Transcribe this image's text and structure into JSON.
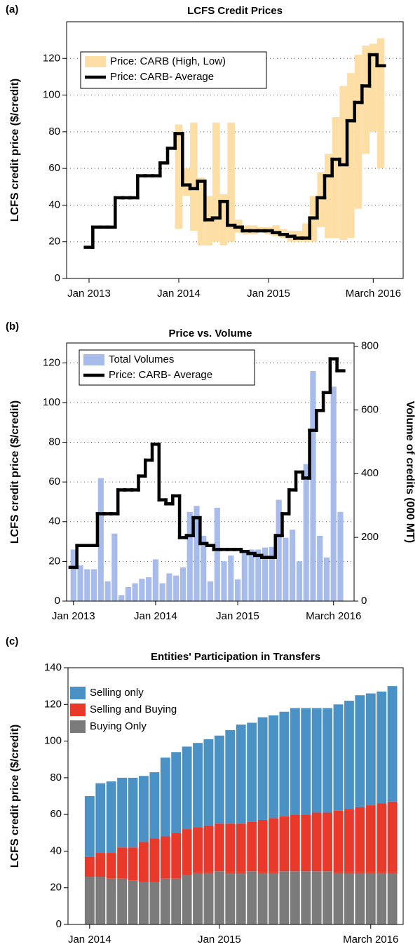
{
  "chart_data": [
    {
      "type": "step",
      "label": "(a)",
      "title": "LCFS Credit Prices",
      "ylabel": "LCFS credit price ($/credit)",
      "x": [
        "2013-01",
        "2013-02",
        "2013-03",
        "2013-04",
        "2013-05",
        "2013-06",
        "2013-07",
        "2013-08",
        "2013-09",
        "2013-10",
        "2013-11",
        "2013-12",
        "2014-01",
        "2014-02",
        "2014-03",
        "2014-04",
        "2014-05",
        "2014-06",
        "2014-07",
        "2014-08",
        "2014-09",
        "2014-10",
        "2014-11",
        "2014-12",
        "2015-01",
        "2015-02",
        "2015-03",
        "2015-04",
        "2015-05",
        "2015-06",
        "2015-07",
        "2015-08",
        "2015-09",
        "2015-10",
        "2015-11",
        "2015-12",
        "2016-01",
        "2016-02",
        "2016-03",
        "2016-04"
      ],
      "xlim": [
        "2012-10",
        "2016-07"
      ],
      "xticks": [
        {
          "value": "2013-01",
          "label": "Jan 2013"
        },
        {
          "value": "2014-01",
          "label": "Jan 2014"
        },
        {
          "value": "2015-01",
          "label": "Jan 2015"
        },
        {
          "value": "2016-03",
          "label": "March 2016"
        }
      ],
      "ylim": [
        0,
        140
      ],
      "yticks": [
        0,
        20,
        40,
        60,
        80,
        100,
        120
      ],
      "grid": true,
      "legend": "upper left",
      "series": [
        {
          "name": "Price: CARB (High, Low)",
          "color": "#fddfa6",
          "low": [
            null,
            null,
            null,
            null,
            null,
            null,
            null,
            null,
            null,
            null,
            null,
            null,
            27,
            45,
            26,
            18,
            18,
            20,
            18,
            20,
            25,
            24,
            24,
            25,
            24,
            23,
            22,
            20,
            20,
            20,
            20,
            28,
            22,
            22,
            21,
            22,
            38,
            68,
            80,
            60
          ],
          "high": [
            null,
            null,
            null,
            null,
            null,
            null,
            null,
            null,
            null,
            null,
            null,
            null,
            84,
            60,
            85,
            55,
            45,
            85,
            46,
            85,
            32,
            29,
            29,
            28,
            28,
            29,
            27,
            26,
            26,
            30,
            45,
            58,
            68,
            88,
            105,
            112,
            122,
            127,
            128,
            131
          ]
        },
        {
          "name": "Price: CARB- Average",
          "color": "#000000",
          "values": [
            17,
            28,
            28,
            28,
            44,
            44,
            44,
            56,
            56,
            56,
            63,
            71,
            79,
            51,
            49,
            53,
            32,
            33,
            42,
            29,
            28,
            26,
            26,
            26,
            26,
            25,
            24,
            23,
            22,
            22,
            33,
            44,
            56,
            65,
            62,
            86,
            96,
            105,
            122,
            116
          ]
        }
      ]
    },
    {
      "type": "combo",
      "label": "(b)",
      "title": "Price vs. Volume",
      "ylabel": "LCFS credit price ($/credit)",
      "y2label": "Volume of credits (000 MT)",
      "x": [
        "2013-01",
        "2013-02",
        "2013-03",
        "2013-04",
        "2013-05",
        "2013-06",
        "2013-07",
        "2013-08",
        "2013-09",
        "2013-10",
        "2013-11",
        "2013-12",
        "2014-01",
        "2014-02",
        "2014-03",
        "2014-04",
        "2014-05",
        "2014-06",
        "2014-07",
        "2014-08",
        "2014-09",
        "2014-10",
        "2014-11",
        "2014-12",
        "2015-01",
        "2015-02",
        "2015-03",
        "2015-04",
        "2015-05",
        "2015-06",
        "2015-07",
        "2015-08",
        "2015-09",
        "2015-10",
        "2015-11",
        "2015-12",
        "2016-01",
        "2016-02",
        "2016-03",
        "2016-04"
      ],
      "xlim": [
        "2012-12",
        "2016-06"
      ],
      "xticks": [
        {
          "value": "2013-01",
          "label": "Jan 2013"
        },
        {
          "value": "2014-01",
          "label": "Jan 2014"
        },
        {
          "value": "2015-01",
          "label": "Jan 2015"
        },
        {
          "value": "2016-03",
          "label": "March 2016"
        }
      ],
      "ylim": [
        0,
        130
      ],
      "yticks": [
        0,
        20,
        40,
        60,
        80,
        100,
        120
      ],
      "y2lim": [
        0,
        810
      ],
      "y2ticks": [
        0,
        200,
        400,
        600,
        800
      ],
      "grid": true,
      "legend": "upper left",
      "series": [
        {
          "name": "Total Volumes",
          "color": "#a8bcec",
          "type": "bar",
          "axis": "y2",
          "values": [
            162,
            112,
            100,
            100,
            386,
            62,
            212,
            19,
            44,
            56,
            70,
            75,
            131,
            56,
            87,
            80,
            106,
            280,
            299,
            205,
            62,
            293,
            125,
            143,
            68,
            150,
            162,
            162,
            168,
            170,
            318,
            199,
            224,
            125,
            430,
            722,
            205,
            137,
            673,
            280
          ]
        },
        {
          "name": "Price: CARB- Average",
          "color": "#000000",
          "type": "step",
          "values": [
            17,
            28,
            28,
            28,
            44,
            44,
            44,
            56,
            56,
            56,
            63,
            71,
            79,
            51,
            49,
            53,
            32,
            33,
            42,
            29,
            28,
            26,
            26,
            26,
            26,
            25,
            24,
            23,
            22,
            22,
            33,
            44,
            56,
            65,
            62,
            86,
            96,
            105,
            122,
            116
          ]
        }
      ]
    },
    {
      "type": "stacked",
      "label": "(c)",
      "title": "Entities' Participation in Transfers",
      "ylabel": "LCFS credit price ($/credit)",
      "x": [
        "2014-01",
        "2014-02",
        "2014-03",
        "2014-04",
        "2014-05",
        "2014-06",
        "2014-07",
        "2014-08",
        "2014-09",
        "2014-10",
        "2014-11",
        "2014-12",
        "2015-01",
        "2015-02",
        "2015-03",
        "2015-04",
        "2015-05",
        "2015-06",
        "2015-07",
        "2015-08",
        "2015-09",
        "2015-10",
        "2015-11",
        "2015-12",
        "2016-01",
        "2016-02",
        "2016-03",
        "2016-04",
        "2016-05"
      ],
      "xlim": [
        "2013-11",
        "2016-06"
      ],
      "xticks": [
        {
          "value": "2014-01",
          "label": "Jan 2014"
        },
        {
          "value": "2015-01",
          "label": "Jan 2015"
        },
        {
          "value": "2016-03",
          "label": "March 2016"
        }
      ],
      "ylim": [
        0,
        140
      ],
      "yticks": [
        0,
        20,
        40,
        60,
        80,
        100,
        120,
        140
      ],
      "grid": false,
      "legend": "upper left",
      "series": [
        {
          "name": "Buying Only",
          "color": "#7b7b7b",
          "values": [
            26,
            26,
            25,
            25,
            24,
            23,
            23,
            25,
            25,
            27,
            28,
            28,
            29,
            28,
            28,
            29,
            28,
            28,
            29,
            29,
            29,
            29,
            29,
            28,
            28,
            28,
            28,
            28,
            28
          ]
        },
        {
          "name": "Selling and Buying",
          "color": "#e8392a",
          "values": [
            11,
            13,
            14,
            17,
            18,
            22,
            24,
            23,
            25,
            25,
            25,
            26,
            26,
            27,
            27,
            27,
            29,
            30,
            30,
            31,
            31,
            32,
            32,
            34,
            35,
            36,
            37,
            38,
            39
          ]
        },
        {
          "name": "Selling only",
          "color": "#4a91c6",
          "values": [
            33,
            38,
            39,
            38,
            38,
            36,
            36,
            43,
            44,
            45,
            46,
            47,
            48,
            51,
            54,
            54,
            56,
            56,
            57,
            58,
            58,
            57,
            57,
            58,
            59,
            61,
            61,
            61,
            63
          ]
        }
      ]
    }
  ]
}
